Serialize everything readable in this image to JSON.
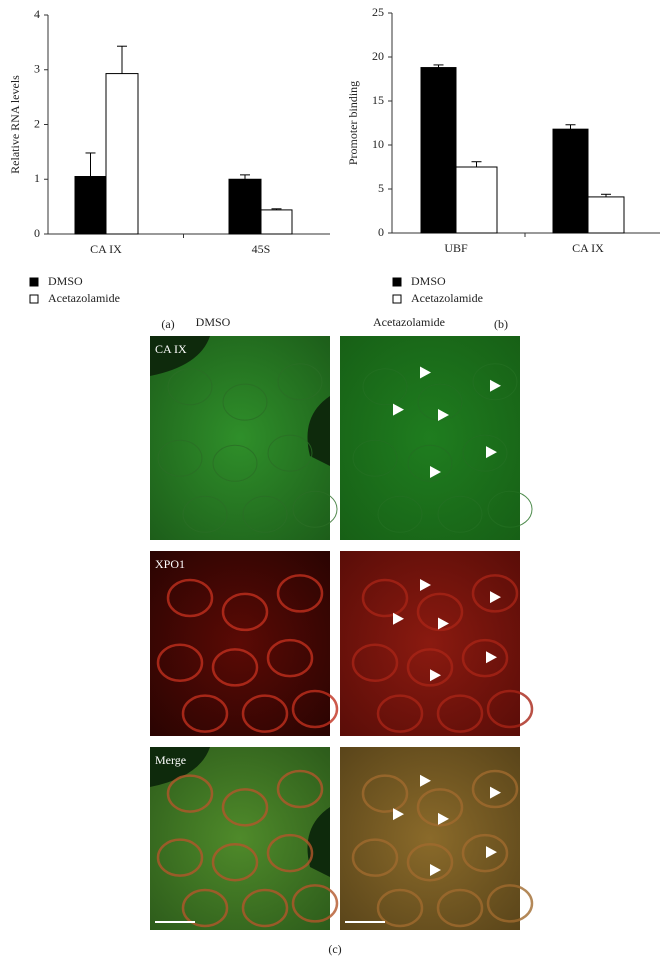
{
  "chart_data": [
    {
      "type": "bar",
      "panel_label": "(a)",
      "y_label": "Relative RNA levels",
      "categories": [
        "CA IX",
        "45S"
      ],
      "series": [
        {
          "name": "DMSO",
          "color": "#000000",
          "values": [
            1.05,
            1.0
          ],
          "errors": [
            0.43,
            0.08
          ]
        },
        {
          "name": "Acetazolamide",
          "color": "#ffffff",
          "values": [
            2.93,
            0.44
          ],
          "errors": [
            0.5,
            0.02
          ]
        }
      ],
      "ylim": [
        0,
        4
      ],
      "yticks": [
        0,
        1,
        2,
        3,
        4
      ]
    },
    {
      "type": "bar",
      "panel_label": "(b)",
      "y_label": "Promoter binding",
      "categories": [
        "UBF",
        "CA IX"
      ],
      "series": [
        {
          "name": "DMSO",
          "color": "#000000",
          "values": [
            18.8,
            11.8
          ],
          "errors": [
            0.3,
            0.5
          ]
        },
        {
          "name": "Acetazolamide",
          "color": "#ffffff",
          "values": [
            7.5,
            4.1
          ],
          "errors": [
            0.6,
            0.3
          ]
        }
      ],
      "ylim": [
        0,
        25
      ],
      "yticks": [
        0,
        5,
        10,
        15,
        20,
        25
      ]
    }
  ],
  "panel_c": {
    "label": "(c)",
    "columns": [
      "DMSO",
      "Acetazolamide"
    ],
    "rows": [
      "CA IX",
      "XPO1",
      "Merge"
    ]
  }
}
